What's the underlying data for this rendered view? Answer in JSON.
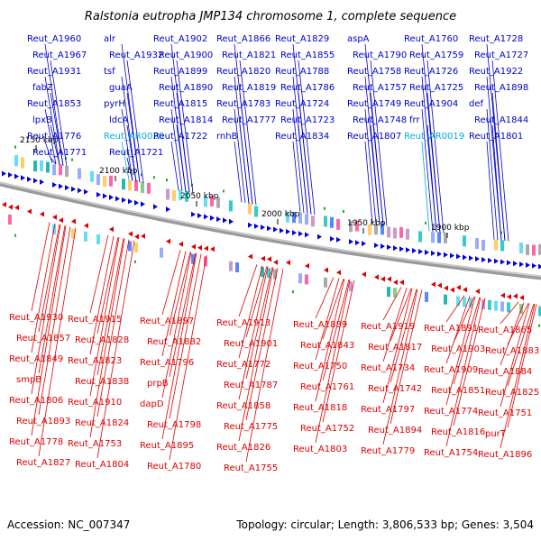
{
  "title": "Ralstonia eutropha JMP134 chromosome 1, complete sequence",
  "accession": "Accession: NC_007347",
  "summary": "Topology: circular; Length: 3,806,533 bp; Genes: 3,504",
  "ticks": [
    "2150 kbp",
    "2100 kbp",
    "2050 kbp",
    "2000 kbp",
    "1950 kbp",
    "1900 kbp"
  ],
  "colors": {
    "forward": "#0000dd",
    "reverse": "#dd0000",
    "rna": "#00aadd",
    "backbone": "#999999"
  },
  "top_labels": [
    "Reut_A1960",
    "alr",
    "Reut_A1902",
    "Reut_A1866",
    "Reut_A1829",
    "aspA",
    "Reut_A1760",
    "Reut_A1728",
    "Reut_A1967",
    "Reut_A1932",
    "Reut_A1900",
    "Reut_A1821",
    "Reut_A1855",
    "Reut_A1790",
    "Reut_A1759",
    "Reut_A1727",
    "Reut_A1931",
    "tsf",
    "Reut_A1899",
    "Reut_A1820",
    "Reut_A1788",
    "Reut_A1758",
    "Reut_A1726",
    "Reut_A1922",
    "fabZ",
    "guaA",
    "Reut_A1890",
    "Reut_A1819",
    "Reut_A1786",
    "Reut_A1757",
    "Reut_A1725",
    "Reut_A1898",
    "Reut_A1853",
    "pyrH",
    "Reut_A1815",
    "Reut_A1783",
    "Reut_A1724",
    "Reut_A1749",
    "Reut_A1904",
    "def",
    "lpxB",
    "ldcA",
    "Reut_A1814",
    "Reut_A1777",
    "Reut_A1723",
    "Reut_A1748",
    "frr",
    "Reut_A1844",
    "Reut_A1776",
    "Reut_AR0020",
    "Reut_A1722",
    "rnhB",
    "Reut_A1834",
    "Reut_A1807",
    "Reut_AR0019",
    "Reut_A1801",
    "Reut_A1771",
    "Reut_A1721"
  ],
  "bottom_labels": [
    "Reut_A1930",
    "Reut_A1915",
    "Reut_A1897",
    "Reut_A1913",
    "Reut_A1889",
    "Reut_A1919",
    "Reut_A1891",
    "Reut_A1865",
    "Reut_A1857",
    "Reut_A1828",
    "Reut_A1882",
    "Reut_A1901",
    "Reut_A1843",
    "Reut_A1817",
    "Reut_A1903",
    "Reut_A1883",
    "Reut_A1849",
    "Reut_A1823",
    "Reut_A1796",
    "Reut_A1772",
    "Reut_A1750",
    "Reut_A1734",
    "Reut_A1909",
    "Reut_A1884",
    "smpB",
    "Reut_A1838",
    "prpB",
    "Reut_A1787",
    "Reut_A1761",
    "Reut_A1742",
    "Reut_A1851",
    "Reut_A1825",
    "Reut_A1806",
    "Reut_A1910",
    "dapD",
    "Reut_A1858",
    "Reut_A1818",
    "Reut_A1797",
    "Reut_A1774",
    "Reut_A1751",
    "Reut_A1893",
    "Reut_A1824",
    "Reut_A1798",
    "Reut_A1775",
    "Reut_A1752",
    "Reut_A1894",
    "Reut_A1816",
    "purT",
    "Reut_A1778",
    "Reut_A1753",
    "Reut_A1895",
    "Reut_A1826",
    "Reut_A1803",
    "Reut_A1779",
    "Reut_A1754",
    "Reut_A1896",
    "Reut_A1827",
    "Reut_A1804",
    "Reut_A1780",
    "Reut_A1755"
  ]
}
